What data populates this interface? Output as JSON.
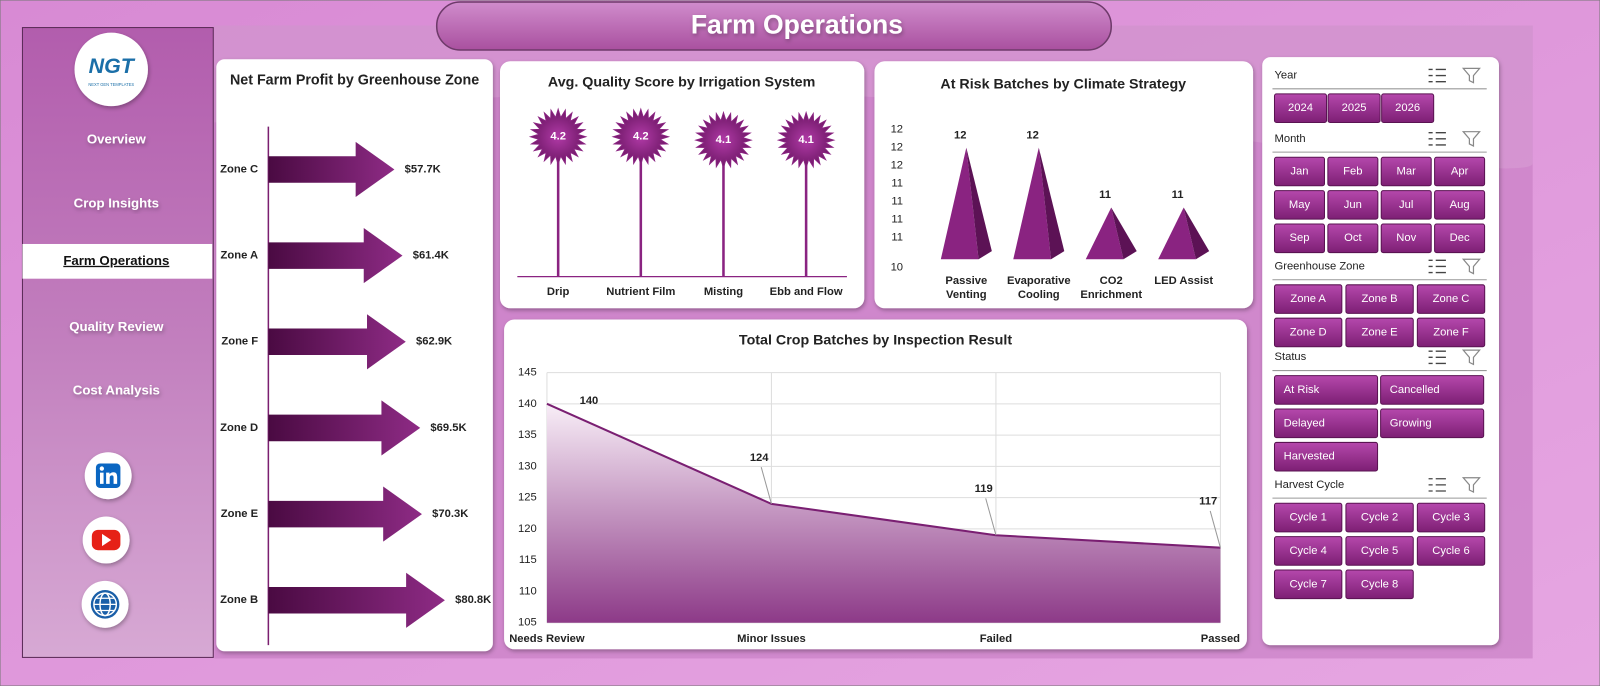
{
  "header": {
    "title": "Farm Operations"
  },
  "logo": {
    "text": "NGT",
    "tagline": "NEXT GEN TEMPLATES"
  },
  "nav": {
    "items": [
      "Overview",
      "Crop Insights",
      "Farm Operations",
      "Quality Review",
      "Cost Analysis"
    ],
    "active": 2
  },
  "chart_data": [
    {
      "type": "arrow-bar",
      "title": "Net Farm Profit by Greenhouse Zone",
      "categories": [
        "Zone C",
        "Zone A",
        "Zone F",
        "Zone D",
        "Zone E",
        "Zone B"
      ],
      "values": [
        57.7,
        61.4,
        62.9,
        69.5,
        70.3,
        80.8
      ],
      "value_labels": [
        "$57.7K",
        "$61.4K",
        "$62.9K",
        "$69.5K",
        "$70.3K",
        "$80.8K"
      ],
      "color": "#7b1f70"
    },
    {
      "type": "lollipop",
      "title": "Avg. Quality Score by Irrigation System",
      "categories": [
        "Drip",
        "Nutrient Film",
        "Misting",
        "Ebb and Flow"
      ],
      "values": [
        4.2,
        4.2,
        4.1,
        4.1
      ],
      "color": "#8a2381"
    },
    {
      "type": "pyramid",
      "title": "At Risk Batches by Climate Strategy",
      "categories": [
        "Passive Venting",
        "Evaporative Cooling",
        "CO2 Enrichment",
        "LED Assist"
      ],
      "values": [
        12,
        12,
        11,
        11
      ],
      "ylim": [
        10,
        12.3
      ],
      "yticks": [
        10,
        {
          "value": 10.5,
          "label": "11"
        },
        {
          "value": 10.8,
          "label": "11"
        },
        {
          "value": 11.1,
          "label": "11"
        },
        {
          "value": 11.4,
          "label": "11"
        },
        {
          "value": 11.7,
          "label": "12"
        },
        12,
        {
          "value": 12.3,
          "label": "12"
        }
      ],
      "color": "#8a2381"
    },
    {
      "type": "area",
      "title": "Total Crop Batches by Inspection Result",
      "categories": [
        "Needs Review",
        "Minor Issues",
        "Failed",
        "Passed"
      ],
      "values": [
        140,
        124,
        119,
        117
      ],
      "ylim": [
        105,
        145
      ],
      "yticks": [
        105,
        110,
        115,
        120,
        125,
        130,
        135,
        140,
        145
      ],
      "grid": true,
      "color": "#7a1f72"
    }
  ],
  "slicers": [
    {
      "title": "Year",
      "items": [
        "2024",
        "2025",
        "2026"
      ]
    },
    {
      "title": "Month",
      "items": [
        "Jan",
        "Feb",
        "Mar",
        "Apr",
        "May",
        "Jun",
        "Jul",
        "Aug",
        "Sep",
        "Oct",
        "Nov",
        "Dec"
      ]
    },
    {
      "title": "Greenhouse Zone",
      "items": [
        "Zone A",
        "Zone B",
        "Zone C",
        "Zone D",
        "Zone E",
        "Zone F"
      ]
    },
    {
      "title": "Status",
      "items": [
        "At Risk",
        "Cancelled",
        "Delayed",
        "Growing",
        "Harvested"
      ]
    },
    {
      "title": "Harvest Cycle",
      "items": [
        "Cycle 1",
        "Cycle 2",
        "Cycle 3",
        "Cycle 4",
        "Cycle 5",
        "Cycle 6",
        "Cycle 7",
        "Cycle 8"
      ]
    }
  ]
}
